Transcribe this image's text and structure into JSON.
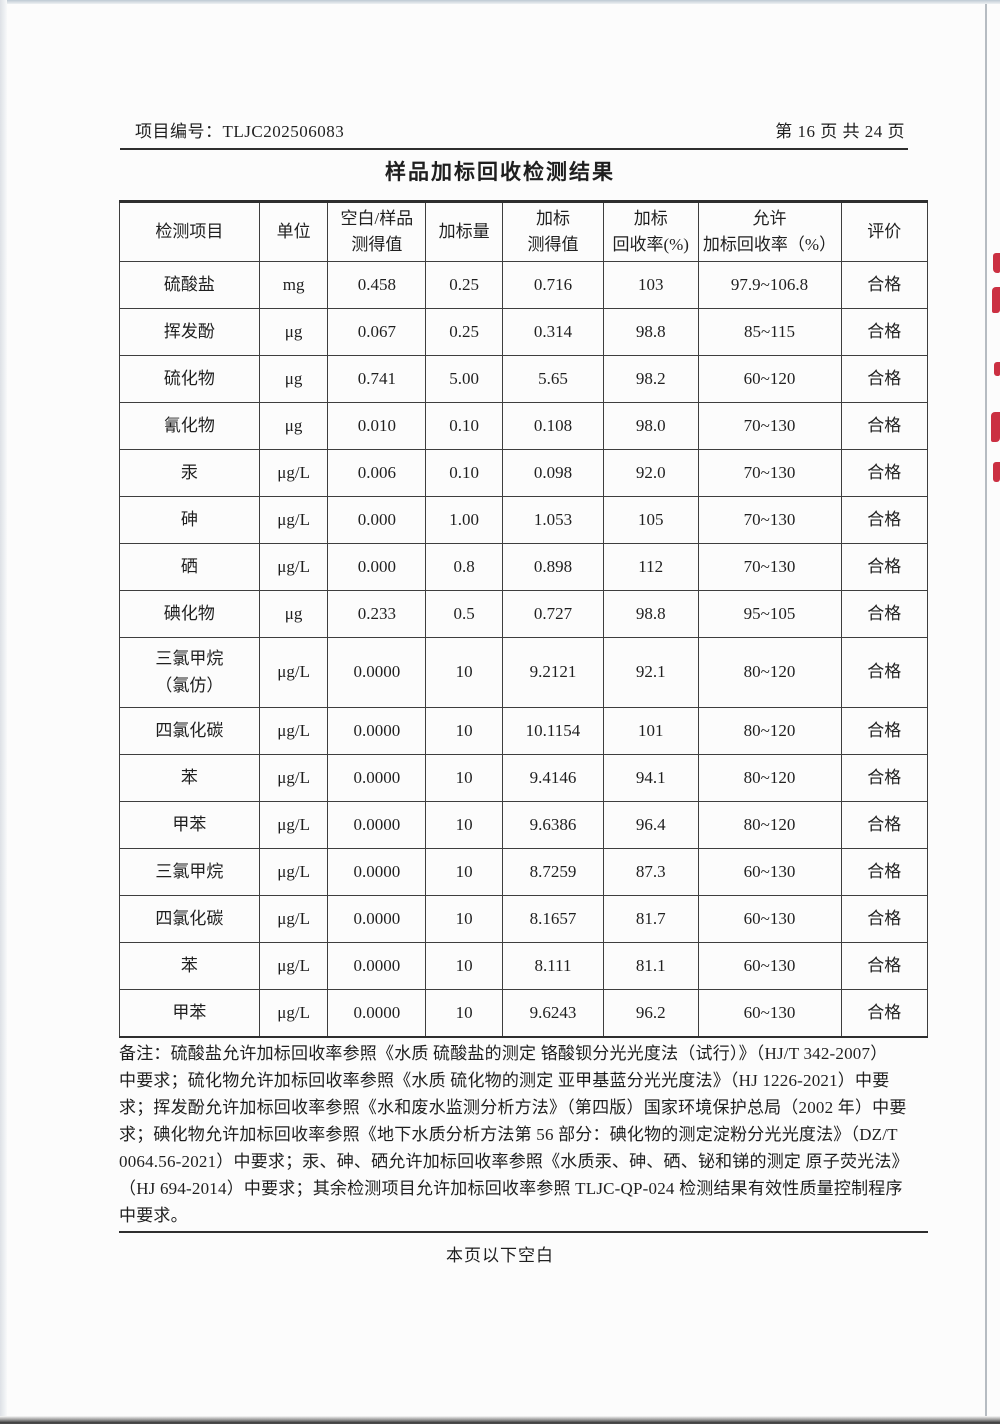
{
  "page_header": {
    "project_label": "项目编号：TLJC202506083",
    "page_info": "第 16 页 共 24 页"
  },
  "title": "样品加标回收检测结果",
  "table": {
    "headers": [
      "检测项目",
      "单位",
      "空白/样品\n测得值",
      "加标量",
      "加标\n测得值",
      "加标\n回收率(%)",
      "允许\n加标回收率（%）",
      "评价"
    ],
    "rows": [
      [
        "硫酸盐",
        "mg",
        "0.458",
        "0.25",
        "0.716",
        "103",
        "97.9~106.8",
        "合格"
      ],
      [
        "挥发酚",
        "μg",
        "0.067",
        "0.25",
        "0.314",
        "98.8",
        "85~115",
        "合格"
      ],
      [
        "硫化物",
        "μg",
        "0.741",
        "5.00",
        "5.65",
        "98.2",
        "60~120",
        "合格"
      ],
      [
        "氰化物",
        "μg",
        "0.010",
        "0.10",
        "0.108",
        "98.0",
        "70~130",
        "合格"
      ],
      [
        "汞",
        "μg/L",
        "0.006",
        "0.10",
        "0.098",
        "92.0",
        "70~130",
        "合格"
      ],
      [
        "砷",
        "μg/L",
        "0.000",
        "1.00",
        "1.053",
        "105",
        "70~130",
        "合格"
      ],
      [
        "硒",
        "μg/L",
        "0.000",
        "0.8",
        "0.898",
        "112",
        "70~130",
        "合格"
      ],
      [
        "碘化物",
        "μg",
        "0.233",
        "0.5",
        "0.727",
        "98.8",
        "95~105",
        "合格"
      ],
      [
        "三氯甲烷\n（氯仿）",
        "μg/L",
        "0.0000",
        "10",
        "9.2121",
        "92.1",
        "80~120",
        "合格"
      ],
      [
        "四氯化碳",
        "μg/L",
        "0.0000",
        "10",
        "10.1154",
        "101",
        "80~120",
        "合格"
      ],
      [
        "苯",
        "μg/L",
        "0.0000",
        "10",
        "9.4146",
        "94.1",
        "80~120",
        "合格"
      ],
      [
        "甲苯",
        "μg/L",
        "0.0000",
        "10",
        "9.6386",
        "96.4",
        "80~120",
        "合格"
      ],
      [
        "三氯甲烷",
        "μg/L",
        "0.0000",
        "10",
        "8.7259",
        "87.3",
        "60~130",
        "合格"
      ],
      [
        "四氯化碳",
        "μg/L",
        "0.0000",
        "10",
        "8.1657",
        "81.7",
        "60~130",
        "合格"
      ],
      [
        "苯",
        "μg/L",
        "0.0000",
        "10",
        "8.111",
        "81.1",
        "60~130",
        "合格"
      ],
      [
        "甲苯",
        "μg/L",
        "0.0000",
        "10",
        "9.6243",
        "96.2",
        "60~130",
        "合格"
      ]
    ]
  },
  "notes": {
    "lines": [
      "备注：硫酸盐允许加标回收率参照《水质 硫酸盐的测定 铬酸钡分光光度法（试行）》（HJ/T 342-2007）",
      "中要求；硫化物允许加标回收率参照《水质 硫化物的测定 亚甲基蓝分光光度法》（HJ 1226-2021）中要",
      "求；挥发酚允许加标回收率参照《水和废水监测分析方法》（第四版）国家环境保护总局（2002 年）中要",
      "求；碘化物允许加标回收率参照《地下水质分析方法第 56 部分：碘化物的测定淀粉分光光度法》（DZ/T",
      "0064.56-2021）中要求；汞、砷、硒允许加标回收率参照《水质汞、砷、硒、铋和锑的测定 原子荧光法》",
      "（HJ 694-2014）中要求；其余检测项目允许加标回收率参照 TLJC-QP-024 检测结果有效性质量控制程序",
      "中要求。"
    ]
  },
  "footer": "本页以下空白",
  "stamp_color": "#c51a2d"
}
